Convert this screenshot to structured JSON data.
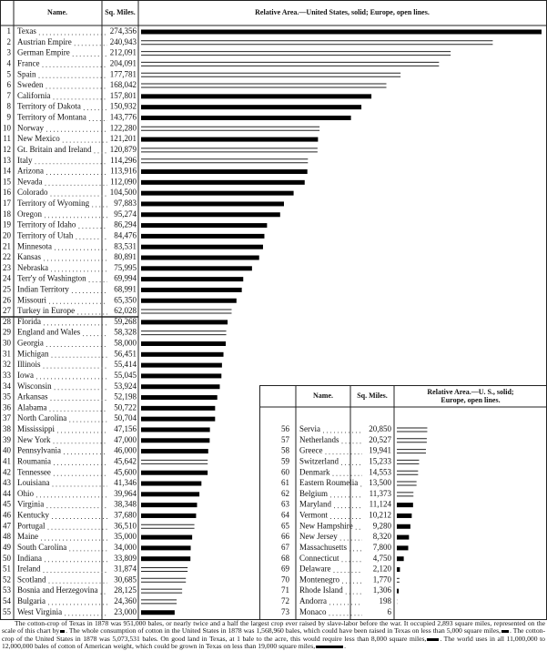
{
  "chart_data": [
    {
      "type": "bar",
      "headers": [
        "Name.",
        "Sq. Miles.",
        "Relative Area.—United States, solid; Europe, open lines."
      ],
      "ranks": [
        1,
        2,
        3,
        4,
        5,
        6,
        7,
        8,
        9,
        10,
        11,
        12,
        13,
        14,
        15,
        16,
        17,
        18,
        19,
        20,
        21,
        22,
        23,
        24,
        25,
        26,
        27,
        28,
        29,
        30,
        31,
        32,
        33,
        34,
        35,
        36,
        37,
        38,
        39,
        40,
        41,
        42,
        43,
        44,
        45,
        46,
        47,
        48,
        49,
        50,
        51,
        52,
        53,
        54,
        55
      ],
      "categories": [
        "Texas",
        "Austrian Empire",
        "German Empire",
        "France",
        "Spain",
        "Sweden",
        "California",
        "Territory of Dakota",
        "Territory of Montana",
        "Norway",
        "New Mexico",
        "Gt. Britain and Ireland",
        "Italy",
        "Arizona",
        "Nevada",
        "Colorado",
        "Territory of Wyoming",
        "Oregon",
        "Territory of Idaho",
        "Territory of Utah",
        "Minnesota",
        "Kansas",
        "Nebraska",
        "Terr'y of Washington",
        "Indian Territory",
        "Missouri",
        "Turkey in Europe",
        "Florida",
        "England and Wales",
        "Georgia",
        "Michigan",
        "Illinois",
        "Iowa",
        "Wisconsin",
        "Arkansas",
        "Alabama",
        "North Carolina",
        "Mississippi",
        "New York",
        "Pennsylvania",
        "Roumania",
        "Tennessee",
        "Louisiana",
        "Ohio",
        "Virginia",
        "Kentucky",
        "Portugal",
        "Maine",
        "South Carolina",
        "Indiana",
        "Ireland",
        "Scotland",
        "Bosnia and Herzegovina",
        "Bulgaria",
        "West Virginia"
      ],
      "values": [
        274356,
        240943,
        212091,
        204091,
        177781,
        168042,
        157801,
        150932,
        143776,
        122280,
        121201,
        120879,
        114296,
        113916,
        112090,
        104500,
        97883,
        95274,
        86294,
        84476,
        83531,
        80891,
        75995,
        69994,
        68991,
        65350,
        62028,
        59268,
        58328,
        58000,
        56451,
        55414,
        55045,
        53924,
        52198,
        50722,
        50704,
        47156,
        47000,
        46000,
        45642,
        45600,
        41346,
        39964,
        38348,
        37680,
        36510,
        35000,
        34000,
        33809,
        31874,
        30685,
        28125,
        24360,
        23000
      ],
      "value_labels": [
        "274,356",
        "240,943",
        "212,091",
        "204,091",
        "177,781",
        "168,042",
        "157,801",
        "150,932",
        "143,776",
        "122,280",
        "121,201",
        "120,879",
        "114,296",
        "113,916",
        "112,090",
        "104,500",
        "97,883",
        "95,274",
        "86,294",
        "84,476",
        "83,531",
        "80,891",
        "75,995",
        "69,994",
        "68,991",
        "65,350",
        "62,028",
        "59,268",
        "58,328",
        "58,000",
        "56,451",
        "55,414",
        "55,045",
        "53,924",
        "52,198",
        "50,722",
        "50,704",
        "47,156",
        "47,000",
        "46,000",
        "45,642",
        "45,600",
        "41,346",
        "39,964",
        "38,348",
        "37,680",
        "36,510",
        "35,000",
        "34,000",
        "33,809",
        "31,874",
        "30,685",
        "28,125",
        "24,360",
        "23,000"
      ],
      "styles": [
        "solid",
        "open",
        "open",
        "open",
        "open",
        "open",
        "solid",
        "solid",
        "solid",
        "open",
        "solid",
        "open",
        "open",
        "solid",
        "solid",
        "solid",
        "solid",
        "solid",
        "solid",
        "solid",
        "solid",
        "solid",
        "solid",
        "solid",
        "solid",
        "solid",
        "open",
        "solid",
        "open",
        "solid",
        "solid",
        "solid",
        "solid",
        "solid",
        "solid",
        "solid",
        "solid",
        "solid",
        "solid",
        "solid",
        "open",
        "solid",
        "solid",
        "solid",
        "solid",
        "solid",
        "open",
        "solid",
        "solid",
        "solid",
        "open",
        "open",
        "open",
        "open",
        "solid"
      ],
      "color": "#000000"
    },
    {
      "type": "bar",
      "headers": [
        "Name.",
        "Sq. Miles.",
        "Relative Area.—U. S., solid; Europe, open lines."
      ],
      "ranks": [
        56,
        57,
        58,
        59,
        60,
        61,
        62,
        63,
        64,
        65,
        66,
        67,
        68,
        69,
        70,
        71,
        72,
        73
      ],
      "categories": [
        "Servia",
        "Netherlands",
        "Greece",
        "Switzerland",
        "Denmark",
        "Eastern Roumelia",
        "Belgium",
        "Maryland",
        "Vermont",
        "New Hampshire",
        "New Jersey",
        "Massachusetts",
        "Connecticut",
        "Delaware",
        "Montenegro",
        "Rhode Island",
        "Andorra",
        "Monaco"
      ],
      "values": [
        20850,
        20527,
        19941,
        15233,
        14553,
        13500,
        11373,
        11124,
        10212,
        9280,
        8320,
        7800,
        4750,
        2120,
        1770,
        1306,
        198,
        6
      ],
      "value_labels": [
        "20,850",
        "20,527",
        "19,941",
        "15,233",
        "14,553",
        "13,500",
        "11,373",
        "11,124",
        "10,212",
        "9,280",
        "8,320",
        "7,800",
        "4,750",
        "2,120",
        "1,770",
        "1,306",
        "198",
        "6"
      ],
      "styles": [
        "open",
        "open",
        "open",
        "open",
        "open",
        "open",
        "open",
        "solid",
        "solid",
        "solid",
        "solid",
        "solid",
        "solid",
        "solid",
        "open",
        "solid",
        "open",
        "open"
      ],
      "color": "#000000"
    }
  ],
  "footnote": [
    "The cotton-crop of Texas in 1878 was 951,000 bales, or nearly twice and a half the largest crop ever raised by slave-labor before the war. It occupied 2,893 square miles, represented on the scale of this chart by",
    ". The whole consumption of cotton in the United States in 1878 was 1,568,960 bales, which could have been raised in Texas on less than 5,000 square miles,",
    ". The cotton-crop of the United States in 1878 was 5,073,531 bales. On good land in Texas, at 1 bale to the acre, this would require less than 8,000 square miles,",
    ". The world uses in all 11,000,000 to 12,000,000 bales of cotton of American weight, which could be grown in Texas on less than 19,000 square miles,",
    "."
  ]
}
